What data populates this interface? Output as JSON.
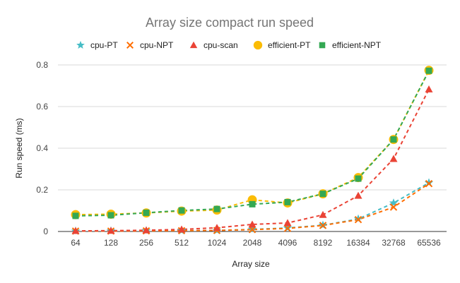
{
  "chart_data": {
    "type": "line",
    "title": "Array size compact run speed",
    "xlabel": "Array size",
    "ylabel": "Run speed (ms)",
    "categories": [
      "64",
      "128",
      "256",
      "512",
      "1024",
      "2048",
      "4096",
      "8192",
      "16384",
      "32768",
      "65536"
    ],
    "ylim": [
      0,
      0.8
    ],
    "yticks": [
      "0",
      "0.2",
      "0.4",
      "0.6",
      "0.8"
    ],
    "grid": true,
    "legend_position": "top",
    "series": [
      {
        "name": "cpu-PT",
        "color": "#46bdc6",
        "marker": "star",
        "values": [
          0.002,
          0.003,
          0.004,
          0.004,
          0.005,
          0.01,
          0.017,
          0.03,
          0.06,
          0.137,
          0.234
        ]
      },
      {
        "name": "cpu-NPT",
        "color": "#ff6d01",
        "marker": "x",
        "values": [
          0.002,
          0.002,
          0.003,
          0.004,
          0.005,
          0.009,
          0.015,
          0.029,
          0.057,
          0.117,
          0.23
        ]
      },
      {
        "name": "cpu-scan",
        "color": "#ea4335",
        "marker": "triangle",
        "values": [
          0.003,
          0.004,
          0.006,
          0.01,
          0.018,
          0.034,
          0.041,
          0.08,
          0.172,
          0.349,
          0.683
        ]
      },
      {
        "name": "efficient-PT",
        "color": "#fbbc04",
        "marker": "circle",
        "values": [
          0.081,
          0.083,
          0.089,
          0.098,
          0.103,
          0.152,
          0.137,
          0.181,
          0.259,
          0.442,
          0.774
        ]
      },
      {
        "name": "efficient-NPT",
        "color": "#34a853",
        "marker": "square",
        "values": [
          0.075,
          0.078,
          0.09,
          0.101,
          0.108,
          0.131,
          0.141,
          0.181,
          0.254,
          0.442,
          0.772
        ]
      }
    ]
  }
}
